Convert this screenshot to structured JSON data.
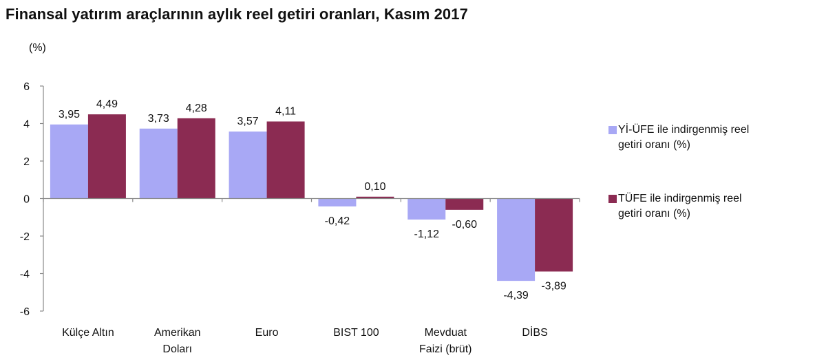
{
  "chart_data": {
    "type": "bar",
    "title": "Finansal yatırım araçlarının aylık reel getiri oranları, Kasım 2017",
    "ylabel": "(%)",
    "xlabel": "",
    "ylim": [
      -6,
      6
    ],
    "yticks": [
      6,
      4,
      2,
      0,
      -2,
      -4,
      -6
    ],
    "grid": false,
    "legend_position": "right",
    "categories": [
      [
        "Külçe Altın"
      ],
      [
        "Amerikan",
        "Doları"
      ],
      [
        "Euro"
      ],
      [
        "BIST 100"
      ],
      [
        "Mevduat",
        "Faizi (brüt)"
      ],
      [
        "DİBS"
      ]
    ],
    "series": [
      {
        "name": "Yİ-ÜFE ile indirgenmiş reel getiri oranı (%)",
        "color": "#a8a8f5",
        "values": [
          3.95,
          3.73,
          3.57,
          -0.42,
          -1.12,
          -4.39
        ],
        "labels": [
          "3,95",
          "3,73",
          "3,57",
          "-0,42",
          "-1,12",
          "-4,39"
        ]
      },
      {
        "name": "TÜFE ile indirgenmiş reel getiri oranı (%)",
        "color": "#8b2b52",
        "values": [
          4.49,
          4.28,
          4.11,
          0.1,
          -0.6,
          -3.89
        ],
        "labels": [
          "4,49",
          "4,28",
          "4,11",
          "0,10",
          "-0,60",
          "-3,89"
        ]
      }
    ]
  },
  "legend": {
    "items": [
      {
        "lines": [
          "Yİ-ÜFE ile indirgenmiş reel",
          "getiri oranı (%)"
        ]
      },
      {
        "lines": [
          "TÜFE ile indirgenmiş reel",
          "getiri oranı (%)"
        ]
      }
    ]
  }
}
